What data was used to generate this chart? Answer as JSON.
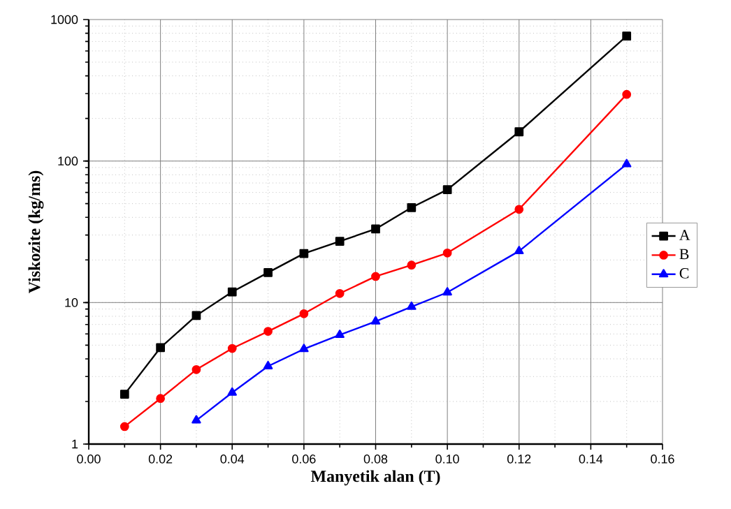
{
  "chart_data": {
    "type": "line",
    "xlabel": "Manyetik alan (T)",
    "ylabel": "Viskozite (kg/ms)",
    "log": "y",
    "xlim": [
      0,
      0.16
    ],
    "xticks": [
      {
        "value": 0,
        "label": "0.00"
      },
      {
        "value": 0.02,
        "label": "0.02"
      },
      {
        "value": 0.04,
        "label": "0.04"
      },
      {
        "value": 0.06,
        "label": "0.06"
      },
      {
        "value": 0.08,
        "label": "0.08"
      },
      {
        "value": 0.1,
        "label": "0.10"
      },
      {
        "value": 0.12,
        "label": "0.12"
      },
      {
        "value": 0.14,
        "label": "0.14"
      },
      {
        "value": 0.16,
        "label": "0.16"
      }
    ],
    "ylim": [
      1,
      1000
    ],
    "yticks": [
      1,
      10,
      100,
      1000
    ],
    "grid": true,
    "legend": "right",
    "line_style": "solid",
    "series": [
      {
        "name": "A",
        "color": "#000000",
        "marker": "square",
        "x": [
          0.01,
          0.02,
          0.03,
          0.04,
          0.05,
          0.06,
          0.07,
          0.08,
          0.09,
          0.1,
          0.12,
          0.15
        ],
        "values": [
          2.25,
          4.8,
          8.1,
          11.9,
          16.3,
          22.2,
          27.1,
          33.1,
          46.9,
          62.8,
          161,
          764
        ]
      },
      {
        "name": "B",
        "color": "#ff0000",
        "marker": "circle",
        "x": [
          0.01,
          0.02,
          0.03,
          0.04,
          0.05,
          0.06,
          0.07,
          0.08,
          0.09,
          0.1,
          0.12,
          0.15
        ],
        "values": [
          1.33,
          2.1,
          3.36,
          4.74,
          6.26,
          8.34,
          11.6,
          15.3,
          18.4,
          22.4,
          45.6,
          296
        ]
      },
      {
        "name": "C",
        "color": "#0000ff",
        "marker": "triangle",
        "x": [
          0.03,
          0.04,
          0.05,
          0.06,
          0.07,
          0.08,
          0.09,
          0.1,
          0.12,
          0.15
        ],
        "values": [
          1.47,
          2.31,
          3.55,
          4.69,
          5.91,
          7.36,
          9.33,
          11.8,
          23.1,
          95
        ]
      }
    ]
  }
}
